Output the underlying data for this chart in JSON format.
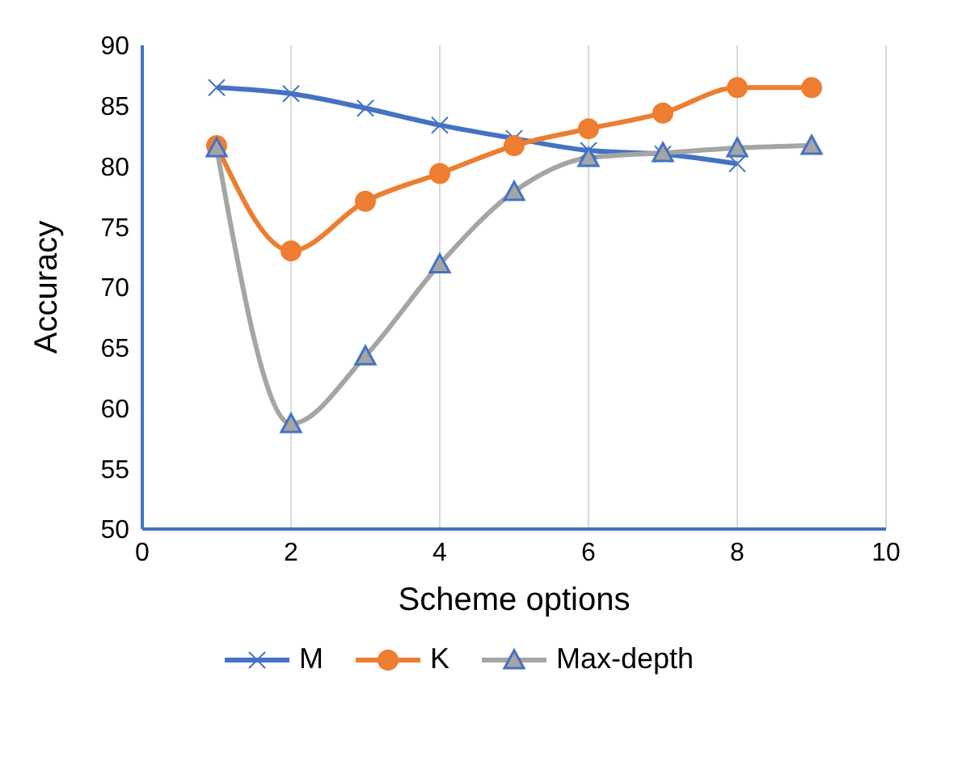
{
  "chart_data": {
    "type": "line",
    "xlabel": "Scheme options",
    "ylabel": "Accuracy",
    "x": [
      1,
      2,
      3,
      4,
      5,
      6,
      7,
      8,
      9
    ],
    "series": [
      {
        "name": "M",
        "color": "#4472c4",
        "marker": "cross",
        "values": [
          86.5,
          86,
          84.8,
          83.4,
          82.3,
          81.3,
          81,
          80.2,
          null
        ]
      },
      {
        "name": "K",
        "color": "#ed7d31",
        "marker": "circle",
        "values": [
          81.7,
          73,
          77.1,
          79.4,
          81.7,
          83.1,
          84.4,
          86.5,
          86.5
        ]
      },
      {
        "name": "Max-depth",
        "color": "#a5a5a5",
        "marker": "triangle",
        "values": [
          81.5,
          58.7,
          64.3,
          71.9,
          77.9,
          80.7,
          81.1,
          81.5,
          81.7
        ]
      }
    ],
    "xlim": [
      0,
      10
    ],
    "xticks": [
      0,
      2,
      4,
      6,
      8,
      10
    ],
    "ylim": [
      50,
      90
    ],
    "yticks": [
      50,
      55,
      60,
      65,
      70,
      75,
      80,
      85,
      90
    ],
    "grid": "x",
    "legend": "bottom"
  }
}
